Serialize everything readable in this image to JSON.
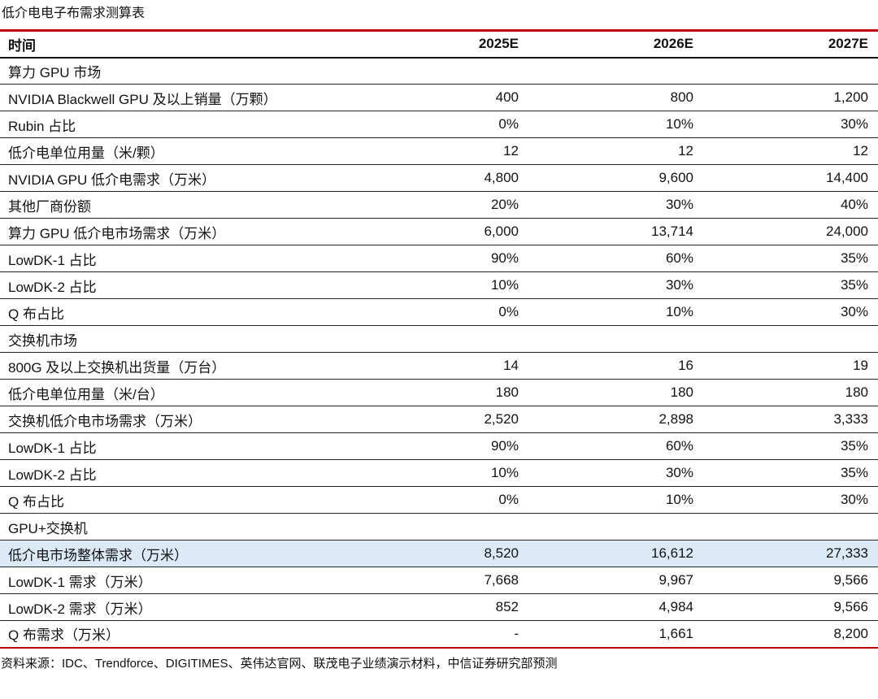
{
  "title": "低介电电子布需求测算表",
  "colors": {
    "accent_red": "#c00000",
    "row_divider": "#262626",
    "highlight_bg": "#dce9f6"
  },
  "table": {
    "header": {
      "label": "时间",
      "cols": [
        "2025E",
        "2026E",
        "2027E"
      ]
    },
    "rows": [
      {
        "type": "section",
        "label": "算力 GPU 市场",
        "values": [
          "",
          "",
          ""
        ]
      },
      {
        "type": "data",
        "label": "NVIDIA Blackwell GPU 及以上销量（万颗）",
        "values": [
          "400",
          "800",
          "1,200"
        ]
      },
      {
        "type": "data",
        "label": "Rubin 占比",
        "values": [
          "0%",
          "10%",
          "30%"
        ]
      },
      {
        "type": "data",
        "label": "低介电单位用量（米/颗）",
        "values": [
          "12",
          "12",
          "12"
        ]
      },
      {
        "type": "data",
        "label": "NVIDIA GPU 低介电需求（万米）",
        "values": [
          "4,800",
          "9,600",
          "14,400"
        ]
      },
      {
        "type": "data",
        "label": "其他厂商份额",
        "values": [
          "20%",
          "30%",
          "40%"
        ]
      },
      {
        "type": "data",
        "label": "算力 GPU 低介电市场需求（万米）",
        "values": [
          "6,000",
          "13,714",
          "24,000"
        ]
      },
      {
        "type": "data",
        "label": "LowDK-1 占比",
        "values": [
          "90%",
          "60%",
          "35%"
        ]
      },
      {
        "type": "data",
        "label": "LowDK-2 占比",
        "values": [
          "10%",
          "30%",
          "35%"
        ]
      },
      {
        "type": "data",
        "label": "Q 布占比",
        "values": [
          "0%",
          "10%",
          "30%"
        ]
      },
      {
        "type": "section",
        "label": "交换机市场",
        "values": [
          "",
          "",
          ""
        ]
      },
      {
        "type": "data",
        "label": "800G 及以上交换机出货量（万台）",
        "values": [
          "14",
          "16",
          "19"
        ]
      },
      {
        "type": "data",
        "label": "低介电单位用量（米/台）",
        "values": [
          "180",
          "180",
          "180"
        ]
      },
      {
        "type": "data",
        "label": "交换机低介电市场需求（万米）",
        "values": [
          "2,520",
          "2,898",
          "3,333"
        ]
      },
      {
        "type": "data",
        "label": "LowDK-1 占比",
        "values": [
          "90%",
          "60%",
          "35%"
        ]
      },
      {
        "type": "data",
        "label": "LowDK-2 占比",
        "values": [
          "10%",
          "30%",
          "35%"
        ]
      },
      {
        "type": "data",
        "label": "Q 布占比",
        "values": [
          "0%",
          "10%",
          "30%"
        ]
      },
      {
        "type": "section",
        "label": "GPU+交换机",
        "values": [
          "",
          "",
          ""
        ]
      },
      {
        "type": "highlight",
        "label": "低介电市场整体需求（万米）",
        "values": [
          "8,520",
          "16,612",
          "27,333"
        ]
      },
      {
        "type": "data",
        "label": "LowDK-1 需求（万米）",
        "values": [
          "7,668",
          "9,967",
          "9,566"
        ]
      },
      {
        "type": "data",
        "label": "LowDK-2 需求（万米）",
        "values": [
          "852",
          "4,984",
          "9,566"
        ]
      },
      {
        "type": "data",
        "label": "Q 布需求（万米）",
        "values": [
          "-",
          "1,661",
          "8,200"
        ]
      }
    ]
  },
  "source": "资料来源：IDC、Trendforce、DIGITIMES、英伟达官网、联茂电子业绩演示材料，中信证券研究部预测"
}
